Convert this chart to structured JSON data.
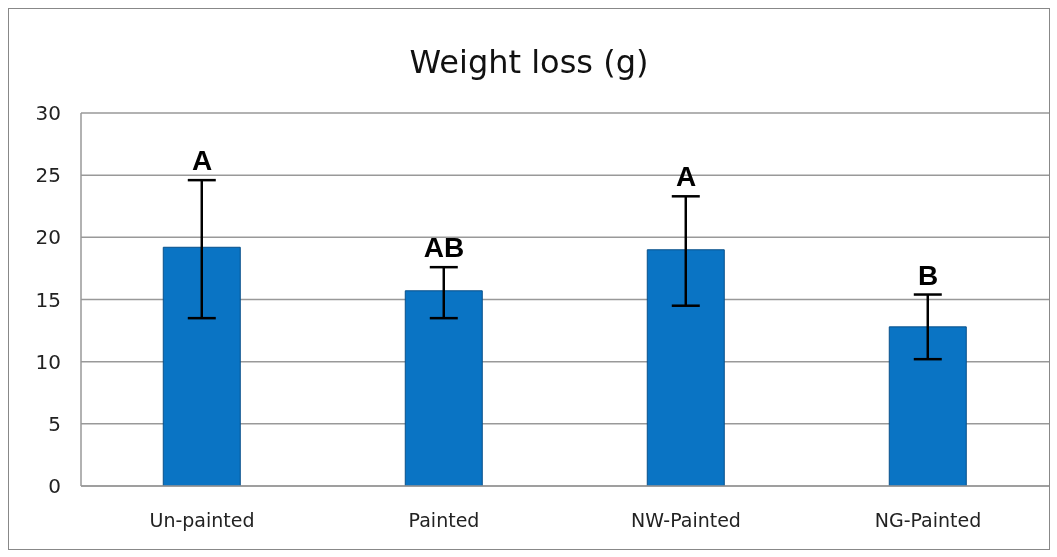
{
  "chart_data": {
    "type": "bar",
    "title": "Weight loss (g)",
    "categories": [
      "Un-painted",
      "Painted",
      "NW-Painted",
      "NG-Painted"
    ],
    "values": [
      19.2,
      15.7,
      19.0,
      12.8
    ],
    "errors": [
      [
        13.5,
        24.6
      ],
      [
        13.5,
        17.6
      ],
      [
        14.5,
        23.3
      ],
      [
        10.2,
        15.4
      ]
    ],
    "color": "#0a74c4",
    "ylim": [
      0,
      30
    ],
    "yticks": [
      0,
      5,
      10,
      15,
      20,
      25,
      30
    ],
    "grid": "y",
    "annotations": [
      {
        "text": "A",
        "x": "Un-painted",
        "y": 24.6
      },
      {
        "text": "AB",
        "x": "Painted",
        "y": 17.6
      },
      {
        "text": "A",
        "x": "NW-Painted",
        "y": 23.3
      },
      {
        "text": "B",
        "x": "NG-Painted",
        "y": 15.4
      }
    ]
  }
}
